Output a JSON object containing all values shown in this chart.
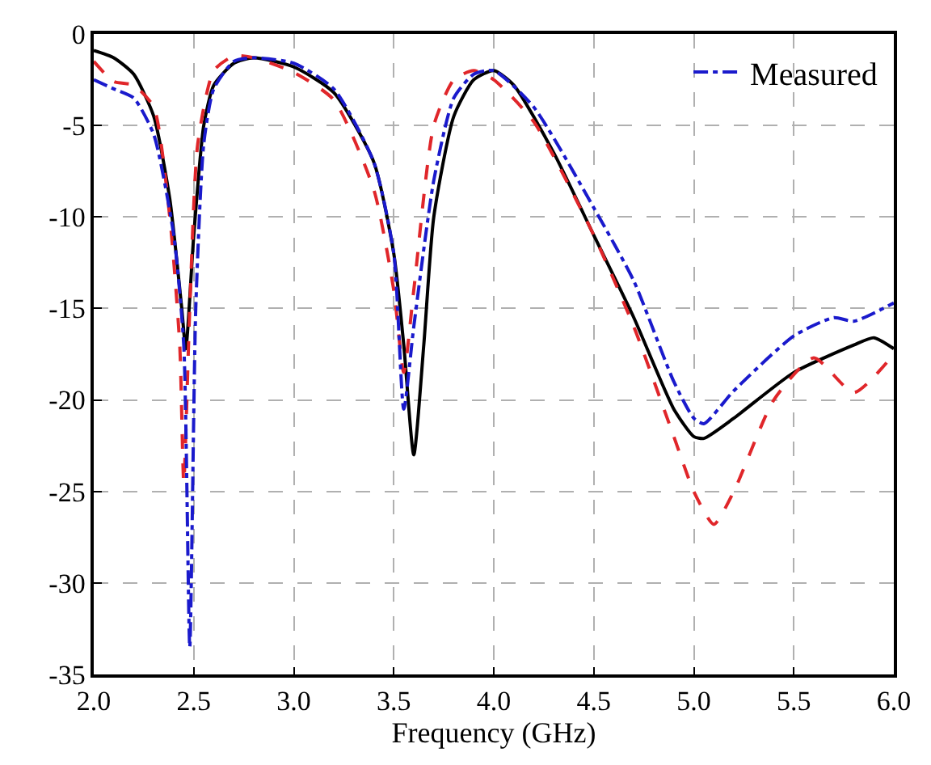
{
  "chart_data": {
    "type": "line",
    "xlabel": "Frequency (GHz)",
    "xlim": [
      2.0,
      6.0
    ],
    "xticks": [
      {
        "value": 2.0,
        "label": "2.0"
      },
      {
        "value": 2.5,
        "label": "2.5"
      },
      {
        "value": 3.0,
        "label": "3.0"
      },
      {
        "value": 3.5,
        "label": "3.5"
      },
      {
        "value": 4.0,
        "label": "4.0"
      },
      {
        "value": 4.5,
        "label": "4.5"
      },
      {
        "value": 5.0,
        "label": "5.0"
      },
      {
        "value": 5.5,
        "label": "5.5"
      },
      {
        "value": 6.0,
        "label": "6.0"
      }
    ],
    "ylim": [
      -35,
      0
    ],
    "yticks": [
      -35,
      -30,
      -25,
      -20,
      -15,
      -10,
      -5,
      0
    ],
    "grid": true,
    "legend": "top right",
    "marker": "none",
    "series": [
      {
        "color": "#000000",
        "line_style": "solid",
        "x": [
          2.0,
          2.1,
          2.2,
          2.3,
          2.38,
          2.44,
          2.46,
          2.5,
          2.55,
          2.6,
          2.7,
          2.8,
          3.0,
          3.2,
          3.4,
          3.5,
          3.55,
          3.6,
          3.65,
          3.7,
          3.8,
          3.9,
          4.0,
          4.1,
          4.3,
          4.5,
          4.7,
          4.9,
          5.0,
          5.05,
          5.2,
          5.5,
          5.8,
          5.9,
          6.0
        ],
        "values": [
          -0.9,
          -1.3,
          -2.2,
          -4.5,
          -9,
          -15,
          -17.2,
          -11,
          -5,
          -2.8,
          -1.6,
          -1.3,
          -1.8,
          -3.2,
          -7,
          -12,
          -17,
          -23,
          -17,
          -10,
          -4.5,
          -2.5,
          -2.0,
          -2.8,
          -6.5,
          -11,
          -15.5,
          -20.5,
          -22,
          -22.1,
          -21,
          -18.5,
          -17,
          -16.6,
          -17.2
        ]
      },
      {
        "color": "#e0262a",
        "line_style": "dashed",
        "x": [
          2.0,
          2.1,
          2.2,
          2.3,
          2.38,
          2.43,
          2.45,
          2.48,
          2.52,
          2.6,
          2.7,
          2.8,
          3.0,
          3.2,
          3.4,
          3.5,
          3.55,
          3.6,
          3.7,
          3.8,
          3.9,
          4.0,
          4.2,
          4.5,
          4.7,
          4.9,
          5.0,
          5.1,
          5.2,
          5.4,
          5.6,
          5.8,
          6.0
        ],
        "values": [
          -1.5,
          -2.6,
          -2.8,
          -4,
          -10,
          -17,
          -24.5,
          -15,
          -6,
          -2,
          -1.2,
          -1.3,
          -2.1,
          -3.6,
          -8.5,
          -14,
          -18.5,
          -14,
          -5,
          -2.5,
          -2,
          -2.5,
          -4.8,
          -11,
          -16,
          -22,
          -25,
          -26.8,
          -25,
          -20,
          -17.7,
          -19.6,
          -17.5
        ]
      },
      {
        "name": "Measured",
        "color": "#1a1acc",
        "line_style": "dashdot",
        "x": [
          2.0,
          2.1,
          2.2,
          2.3,
          2.4,
          2.45,
          2.48,
          2.51,
          2.55,
          2.6,
          2.7,
          2.8,
          3.0,
          3.2,
          3.4,
          3.5,
          3.55,
          3.6,
          3.7,
          3.8,
          3.9,
          4.0,
          4.2,
          4.5,
          4.7,
          4.9,
          5.0,
          5.05,
          5.2,
          5.5,
          5.7,
          5.8,
          6.0
        ],
        "values": [
          -2.5,
          -3,
          -3.5,
          -5.5,
          -11,
          -17,
          -33.5,
          -15,
          -6,
          -3,
          -1.5,
          -1.3,
          -1.6,
          -3,
          -7,
          -12,
          -20.5,
          -16,
          -8,
          -3.5,
          -2.2,
          -2,
          -4,
          -9.5,
          -13.5,
          -19,
          -21,
          -21.3,
          -19.5,
          -16.5,
          -15.5,
          -15.7,
          -14.7
        ]
      }
    ]
  }
}
